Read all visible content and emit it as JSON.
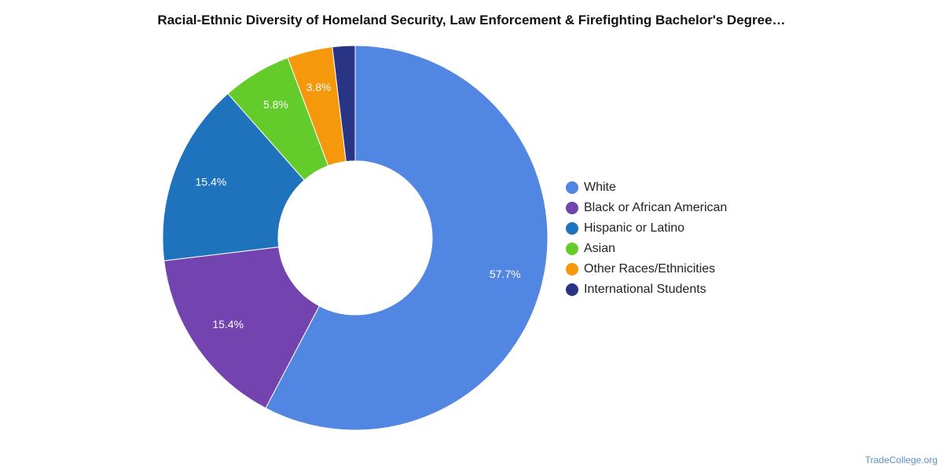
{
  "chart_data": {
    "type": "pie",
    "title": "Racial-Ethnic Diversity of Homeland Security, Law Enforcement & Firefighting Bachelor's Degree…",
    "donut": true,
    "legend_position": "right",
    "slices": [
      {
        "label": "White",
        "value": 57.7,
        "value_label": "57.7%",
        "color": "#5286e3"
      },
      {
        "label": "Black or African American",
        "value": 15.4,
        "value_label": "15.4%",
        "color": "#7344b0"
      },
      {
        "label": "Hispanic or Latino",
        "value": 15.4,
        "value_label": "15.4%",
        "color": "#1f73bd"
      },
      {
        "label": "Asian",
        "value": 5.8,
        "value_label": "5.8%",
        "color": "#63cb2a"
      },
      {
        "label": "Other Races/Ethnicities",
        "value": 3.8,
        "value_label": "3.8%",
        "color": "#f5980b"
      },
      {
        "label": "International Students",
        "value": 1.9,
        "value_label": "",
        "color": "#2a3485"
      }
    ]
  },
  "watermark": "TradeCollege.org"
}
